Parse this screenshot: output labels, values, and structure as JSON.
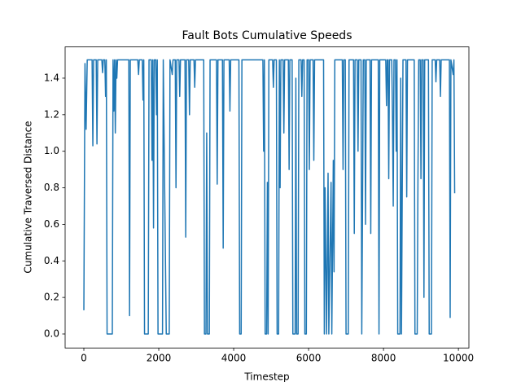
{
  "chart_data": {
    "type": "line",
    "title": "Fault Bots Cumulative Speeds",
    "x_label": "Timestep",
    "y_label": "Cumulative Traversed Distance",
    "color": "#1f77b4",
    "grid": false,
    "xlim": [
      -500,
      10280
    ],
    "ylim": [
      -0.0767,
      1.571
    ],
    "xticks": [
      0,
      2000,
      4000,
      6000,
      8000,
      10000
    ],
    "yticks": [
      {
        "value": 0,
        "label": "0.0"
      },
      0.2,
      0.4,
      0.6,
      0.8,
      {
        "value": 1,
        "label": "1.0"
      },
      1.2,
      1.4
    ],
    "x": [
      0,
      30,
      60,
      90,
      220,
      240,
      260,
      330,
      350,
      370,
      480,
      500,
      520,
      560,
      580,
      600,
      620,
      760,
      780,
      800,
      820,
      840,
      860,
      880,
      900,
      1200,
      1220,
      1240,
      1440,
      1460,
      1480,
      1560,
      1580,
      1600,
      1620,
      1720,
      1740,
      1800,
      1820,
      1840,
      1860,
      1880,
      1920,
      1940,
      1960,
      1980,
      2100,
      2120,
      2200,
      2280,
      2300,
      2360,
      2380,
      2440,
      2460,
      2480,
      2540,
      2560,
      2580,
      2700,
      2720,
      2740,
      2800,
      2820,
      2840,
      2940,
      2960,
      2980,
      3200,
      3220,
      3260,
      3280,
      3300,
      3350,
      3370,
      3540,
      3560,
      3580,
      3700,
      3720,
      3740,
      3880,
      3900,
      3920,
      4140,
      4160,
      4200,
      4220,
      4780,
      4800,
      4820,
      4840,
      4880,
      4900,
      4920,
      4940,
      5040,
      5060,
      5080,
      5140,
      5160,
      5200,
      5220,
      5240,
      5260,
      5320,
      5340,
      5360,
      5460,
      5480,
      5500,
      5560,
      5580,
      5640,
      5660,
      5680,
      5720,
      5740,
      5800,
      5820,
      5840,
      5880,
      5900,
      5940,
      5960,
      6000,
      6020,
      6040,
      6120,
      6140,
      6160,
      6400,
      6420,
      6440,
      6460,
      6480,
      6520,
      6540,
      6600,
      6620,
      6660,
      6680,
      6700,
      6900,
      6920,
      6940,
      6980,
      7000,
      7060,
      7080,
      7200,
      7220,
      7240,
      7300,
      7320,
      7340,
      7400,
      7420,
      7440,
      7460,
      7500,
      7520,
      7540,
      7640,
      7660,
      7680,
      7860,
      7880,
      7900,
      8060,
      8080,
      8100,
      8120,
      8140,
      8160,
      8220,
      8240,
      8260,
      8280,
      8320,
      8340,
      8360,
      8380,
      8440,
      8460,
      8480,
      8520,
      8600,
      8620,
      8640,
      8820,
      8840,
      8900,
      8920,
      8940,
      8980,
      9000,
      9020,
      9060,
      9080,
      9100,
      9200,
      9220,
      9280,
      9300,
      9380,
      9400,
      9420,
      9500,
      9520,
      9540,
      9760,
      9780,
      9800,
      9860,
      9880,
      9900
    ],
    "values": [
      0.13,
      1.48,
      1.12,
      1.5,
      1.5,
      1.03,
      1.5,
      1.5,
      1.04,
      1.5,
      1.5,
      1.43,
      1.5,
      1.5,
      1.3,
      1.5,
      0,
      0,
      1.5,
      1.22,
      1.5,
      1.1,
      1.5,
      1.4,
      1.5,
      1.5,
      0.1,
      1.5,
      1.5,
      1.42,
      1.5,
      1.5,
      1.28,
      1.5,
      0,
      0,
      1.5,
      1.5,
      0.95,
      1.5,
      0.58,
      1.5,
      1.5,
      1.2,
      1.5,
      0,
      0,
      1.5,
      0,
      0,
      1.5,
      1.42,
      1.5,
      1.5,
      0.8,
      1.5,
      1.5,
      1.3,
      1.5,
      1.5,
      0.53,
      1.5,
      1.5,
      1.2,
      1.5,
      1.5,
      1.35,
      1.5,
      1.5,
      0,
      0,
      1.1,
      0,
      0,
      1.5,
      1.5,
      0.82,
      1.5,
      1.5,
      0.47,
      1.5,
      1.5,
      1.22,
      1.5,
      1.5,
      0,
      0,
      1.5,
      1.5,
      1.0,
      1.5,
      0,
      0,
      0.83,
      0,
      1.5,
      1.5,
      1.35,
      1.5,
      1.5,
      0,
      0,
      1.5,
      0.8,
      1.5,
      1.5,
      1.1,
      1.5,
      1.5,
      0.9,
      1.5,
      1.5,
      0,
      0,
      1.4,
      0,
      0,
      1.5,
      1.5,
      1.3,
      1.5,
      1.5,
      0,
      0,
      1.5,
      1.5,
      0.9,
      1.5,
      1.5,
      0.95,
      1.5,
      1.5,
      0,
      0.8,
      0.4,
      0,
      0.88,
      0,
      0.83,
      0,
      0.95,
      0.34,
      1.5,
      1.5,
      0.9,
      1.5,
      1.5,
      0,
      0,
      1.5,
      1.5,
      0.55,
      1.5,
      1.5,
      1.0,
      1.5,
      1.5,
      0,
      0.7,
      1.5,
      1.5,
      0.6,
      1.5,
      1.5,
      0.55,
      1.5,
      1.5,
      0,
      1.5,
      1.5,
      1.25,
      1.5,
      1.5,
      0.85,
      1.5,
      1.5,
      1.18,
      0.7,
      1.5,
      1.5,
      1.0,
      1.5,
      0,
      0,
      1.4,
      0,
      1.5,
      1.5,
      0.75,
      1.5,
      1.5,
      0,
      0,
      0.85,
      1.5,
      1.5,
      0.85,
      1.5,
      1.5,
      0.2,
      1.5,
      1.5,
      0,
      0,
      1.5,
      1.5,
      1.38,
      1.5,
      1.5,
      1.3,
      1.5,
      1.5,
      0.09,
      1.5,
      1.42,
      1.5,
      0.77
    ]
  }
}
